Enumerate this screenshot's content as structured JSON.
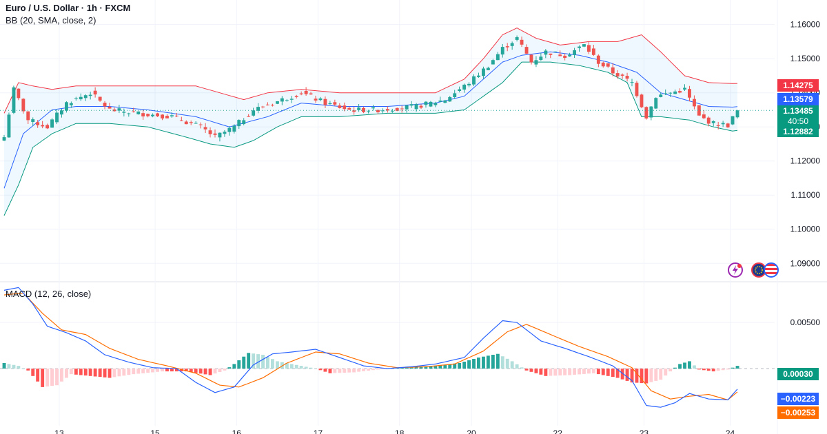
{
  "header": {
    "symbol_title": "Euro / U.S. Dollar · 1h · FXCM",
    "bb_label": "BB (20, SMA, close, 2)",
    "macd_label": "MACD (12, 26, close)"
  },
  "price_tags": {
    "bb_upper": "1.14275",
    "bb_basis": "1.13579",
    "last_price": "1.13485",
    "countdown": "40:50",
    "bb_lower": "1.12882",
    "macd_hist": "0.00030",
    "macd_line": "−0.00223",
    "signal_line": "−0.00253"
  },
  "colors": {
    "up": "#26a69a",
    "down": "#ef5350",
    "bb_basis": "#2962ff",
    "bb_upper": "#f23645",
    "bb_lower": "#089981",
    "macd_line": "#2962ff",
    "signal_line": "#ff6d00"
  },
  "icons": [
    "lightning-icon",
    "flag-eu-icon",
    "flag-us-icon"
  ],
  "chart_data": [
    {
      "type": "candlestick",
      "series_names": [
        "BB upper",
        "BB basis",
        "BB lower"
      ],
      "y_ticks": [
        1.09,
        1.1,
        1.11,
        1.12,
        1.13,
        1.14,
        1.15,
        1.16
      ],
      "y_tick_labels": [
        "1.09000",
        "1.10000",
        "1.11000",
        "1.12000",
        "1.13000",
        "1.14000",
        "1.15000",
        "1.16000"
      ],
      "ylim": [
        1.0848,
        1.1664
      ],
      "x_labels": [
        "13",
        "15",
        "16",
        "17",
        "18",
        "20",
        "22",
        "23",
        "24"
      ],
      "x_label_positions": [
        11.5,
        31.5,
        48.5,
        65.5,
        82.5,
        97.5,
        115.5,
        133.5,
        151.5
      ],
      "bar_count": 154,
      "anchors_close": [
        [
          0,
          1.127
        ],
        [
          2,
          1.141
        ],
        [
          5,
          1.132
        ],
        [
          9,
          1.13
        ],
        [
          13,
          1.137
        ],
        [
          18,
          1.14
        ],
        [
          22,
          1.135
        ],
        [
          28,
          1.134
        ],
        [
          35,
          1.133
        ],
        [
          41,
          1.13
        ],
        [
          44,
          1.127
        ],
        [
          48,
          1.13
        ],
        [
          52,
          1.135
        ],
        [
          56,
          1.137
        ],
        [
          62,
          1.14
        ],
        [
          67,
          1.137
        ],
        [
          72,
          1.135
        ],
        [
          78,
          1.135
        ],
        [
          86,
          1.136
        ],
        [
          92,
          1.138
        ],
        [
          97,
          1.143
        ],
        [
          101,
          1.148
        ],
        [
          104,
          1.153
        ],
        [
          107,
          1.156
        ],
        [
          110,
          1.149
        ],
        [
          113,
          1.152
        ],
        [
          117,
          1.151
        ],
        [
          121,
          1.154
        ],
        [
          124,
          1.149
        ],
        [
          127,
          1.146
        ],
        [
          131,
          1.143
        ],
        [
          134,
          1.133
        ],
        [
          136,
          1.139
        ],
        [
          139,
          1.14
        ],
        [
          142,
          1.141
        ],
        [
          145,
          1.133
        ],
        [
          148,
          1.131
        ],
        [
          151,
          1.1305
        ],
        [
          153,
          1.1348
        ]
      ],
      "bb_upper_anchors": [
        [
          0,
          1.134
        ],
        [
          3,
          1.143
        ],
        [
          6,
          1.142
        ],
        [
          10,
          1.141
        ],
        [
          15,
          1.142
        ],
        [
          20,
          1.142
        ],
        [
          30,
          1.142
        ],
        [
          40,
          1.142
        ],
        [
          50,
          1.138
        ],
        [
          55,
          1.14
        ],
        [
          62,
          1.141
        ],
        [
          70,
          1.14
        ],
        [
          80,
          1.14
        ],
        [
          90,
          1.14
        ],
        [
          96,
          1.144
        ],
        [
          100,
          1.15
        ],
        [
          104,
          1.157
        ],
        [
          107,
          1.159
        ],
        [
          111,
          1.156
        ],
        [
          116,
          1.154
        ],
        [
          122,
          1.155
        ],
        [
          128,
          1.155
        ],
        [
          133,
          1.157
        ],
        [
          137,
          1.152
        ],
        [
          142,
          1.145
        ],
        [
          147,
          1.143
        ],
        [
          152,
          1.1427
        ]
      ],
      "bb_basis_anchors": [
        [
          0,
          1.112
        ],
        [
          4,
          1.128
        ],
        [
          10,
          1.135
        ],
        [
          15,
          1.136
        ],
        [
          22,
          1.136
        ],
        [
          30,
          1.135
        ],
        [
          40,
          1.133
        ],
        [
          47,
          1.13
        ],
        [
          55,
          1.133
        ],
        [
          62,
          1.137
        ],
        [
          70,
          1.136
        ],
        [
          80,
          1.136
        ],
        [
          90,
          1.137
        ],
        [
          96,
          1.139
        ],
        [
          100,
          1.144
        ],
        [
          104,
          1.149
        ],
        [
          108,
          1.151
        ],
        [
          114,
          1.152
        ],
        [
          120,
          1.151
        ],
        [
          126,
          1.149
        ],
        [
          132,
          1.146
        ],
        [
          137,
          1.14
        ],
        [
          142,
          1.138
        ],
        [
          147,
          1.136
        ],
        [
          152,
          1.1358
        ]
      ],
      "bb_lower_anchors": [
        [
          0,
          1.104
        ],
        [
          3,
          1.113
        ],
        [
          6,
          1.124
        ],
        [
          10,
          1.128
        ],
        [
          15,
          1.131
        ],
        [
          22,
          1.131
        ],
        [
          30,
          1.13
        ],
        [
          38,
          1.127
        ],
        [
          43,
          1.125
        ],
        [
          48,
          1.124
        ],
        [
          52,
          1.126
        ],
        [
          57,
          1.13
        ],
        [
          62,
          1.133
        ],
        [
          70,
          1.133
        ],
        [
          80,
          1.134
        ],
        [
          90,
          1.134
        ],
        [
          96,
          1.135
        ],
        [
          100,
          1.139
        ],
        [
          104,
          1.143
        ],
        [
          108,
          1.149
        ],
        [
          114,
          1.149
        ],
        [
          120,
          1.148
        ],
        [
          126,
          1.146
        ],
        [
          130,
          1.143
        ],
        [
          133,
          1.133
        ],
        [
          137,
          1.133
        ],
        [
          143,
          1.132
        ],
        [
          148,
          1.13
        ],
        [
          152,
          1.1288
        ]
      ],
      "last_price": 1.13485
    },
    {
      "type": "macd",
      "series_names": [
        "MACD",
        "Signal",
        "Histogram"
      ],
      "y_ticks": [
        0.005
      ],
      "y_tick_labels": [
        "0.00500"
      ],
      "ylim": [
        -0.0062,
        0.0092
      ],
      "zero_line": 0.0,
      "macd_anchors": [
        [
          0,
          0.0085
        ],
        [
          3,
          0.0088
        ],
        [
          6,
          0.007
        ],
        [
          9,
          0.0046
        ],
        [
          13,
          0.0039
        ],
        [
          17,
          0.003
        ],
        [
          21,
          0.0015
        ],
        [
          26,
          0.0007
        ],
        [
          31,
          0.0001
        ],
        [
          36,
          0.0
        ],
        [
          40,
          -0.0015
        ],
        [
          44,
          -0.0026
        ],
        [
          48,
          -0.002
        ],
        [
          52,
          0.0004
        ],
        [
          56,
          0.0016
        ],
        [
          60,
          0.0018
        ],
        [
          65,
          0.0021
        ],
        [
          70,
          0.0012
        ],
        [
          75,
          0.0003
        ],
        [
          80,
          0.0
        ],
        [
          85,
          0.0002
        ],
        [
          90,
          0.0005
        ],
        [
          96,
          0.0012
        ],
        [
          100,
          0.0033
        ],
        [
          104,
          0.0052
        ],
        [
          107,
          0.005
        ],
        [
          112,
          0.003
        ],
        [
          117,
          0.0022
        ],
        [
          122,
          0.0013
        ],
        [
          127,
          0.0003
        ],
        [
          131,
          -0.0013
        ],
        [
          134,
          -0.004
        ],
        [
          137,
          -0.0042
        ],
        [
          140,
          -0.0037
        ],
        [
          143,
          -0.0027
        ],
        [
          147,
          -0.0033
        ],
        [
          151,
          -0.0034
        ],
        [
          153,
          -0.00223
        ]
      ],
      "signal_anchors": [
        [
          0,
          0.008
        ],
        [
          4,
          0.0082
        ],
        [
          8,
          0.006
        ],
        [
          12,
          0.0042
        ],
        [
          17,
          0.0037
        ],
        [
          22,
          0.0022
        ],
        [
          28,
          0.001
        ],
        [
          34,
          0.0003
        ],
        [
          40,
          -0.0005
        ],
        [
          45,
          -0.0018
        ],
        [
          49,
          -0.002
        ],
        [
          54,
          -0.001
        ],
        [
          59,
          0.0006
        ],
        [
          65,
          0.0018
        ],
        [
          70,
          0.0016
        ],
        [
          76,
          0.0006
        ],
        [
          82,
          0.0001
        ],
        [
          88,
          0.0002
        ],
        [
          94,
          0.0005
        ],
        [
          100,
          0.0019
        ],
        [
          105,
          0.004
        ],
        [
          109,
          0.0048
        ],
        [
          114,
          0.0037
        ],
        [
          120,
          0.0024
        ],
        [
          126,
          0.0013
        ],
        [
          131,
          0.0001
        ],
        [
          135,
          -0.0024
        ],
        [
          139,
          -0.0033
        ],
        [
          143,
          -0.003
        ],
        [
          147,
          -0.0028
        ],
        [
          151,
          -0.0034
        ],
        [
          153,
          -0.00253
        ]
      ],
      "hist_anchors": [
        [
          0,
          0.0006
        ],
        [
          3,
          0.0003
        ],
        [
          5,
          -0.0002
        ],
        [
          8,
          -0.002
        ],
        [
          11,
          -0.0018
        ],
        [
          14,
          -0.0006
        ],
        [
          18,
          -0.0008
        ],
        [
          22,
          -0.001
        ],
        [
          27,
          -0.0006
        ],
        [
          33,
          -0.0003
        ],
        [
          38,
          -0.0003
        ],
        [
          43,
          -0.0007
        ],
        [
          46,
          -0.0002
        ],
        [
          48,
          0.0005
        ],
        [
          51,
          0.0017
        ],
        [
          54,
          0.0015
        ],
        [
          57,
          0.0008
        ],
        [
          61,
          0.0004
        ],
        [
          65,
          0.0
        ],
        [
          68,
          -0.0005
        ],
        [
          73,
          -0.0004
        ],
        [
          78,
          -0.0001
        ],
        [
          84,
          0.0002
        ],
        [
          90,
          0.0003
        ],
        [
          95,
          0.0006
        ],
        [
          99,
          0.0012
        ],
        [
          103,
          0.0016
        ],
        [
          106,
          0.0008
        ],
        [
          109,
          -0.0002
        ],
        [
          113,
          -0.0008
        ],
        [
          118,
          -0.0007
        ],
        [
          123,
          -0.0005
        ],
        [
          128,
          -0.001
        ],
        [
          131,
          -0.0015
        ],
        [
          134,
          -0.0016
        ],
        [
          137,
          -0.0012
        ],
        [
          139,
          -0.0003
        ],
        [
          141,
          0.0005
        ],
        [
          143,
          0.0008
        ],
        [
          145,
          -0.0001
        ],
        [
          148,
          -0.0003
        ],
        [
          151,
          -0.0001
        ],
        [
          153,
          0.0003
        ]
      ]
    }
  ]
}
